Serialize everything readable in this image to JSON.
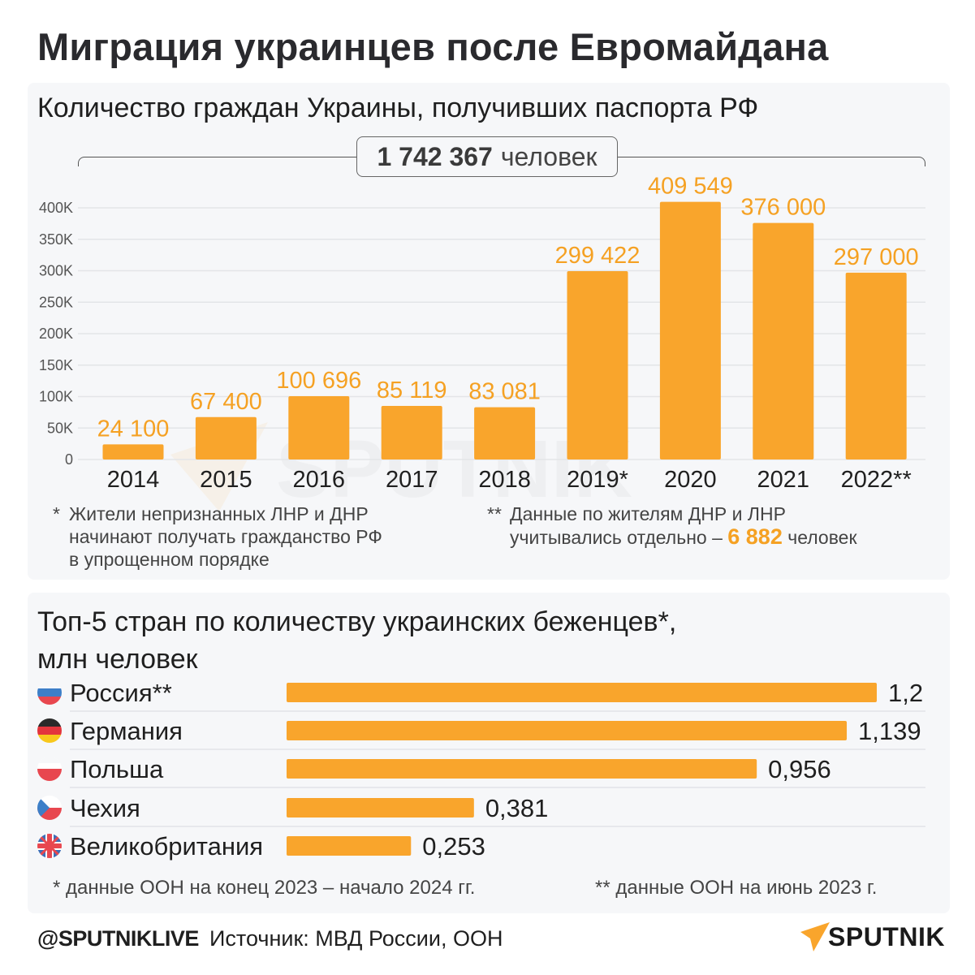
{
  "title": "Миграция украинцев после Евромайдана",
  "passports": {
    "subtitle": "Количество граждан Украины, получивших паспорта РФ",
    "total_value": "1 742 367",
    "total_unit": "человек",
    "notes": [
      {
        "marker": "*",
        "lines": [
          "Жители непризнанных ЛНР и ДНР",
          "начинают получать гражданство РФ",
          "в упрощенном порядке"
        ]
      },
      {
        "marker": "**",
        "line1": "Данные по жителям ДНР и ЛНР",
        "line2_prefix": "учитывались отдельно –",
        "line2_highlight": "6 882",
        "line2_suffix": "человек"
      }
    ]
  },
  "refugees": {
    "subtitle_line1": "Топ-5 стран по количеству украинских беженцев*,",
    "subtitle_line2": "млн человек",
    "footnote1": "* данные ООН на конец 2023 – начало 2024 гг.",
    "footnote2": "** данные ООН на июнь 2023 г."
  },
  "footer": {
    "handle": "@SPUTNIKLIVE",
    "source": "Источник: МВД России, ООН",
    "logo_text": "SPUTNIK",
    "watermark_text": "SPUTNIK"
  },
  "colors": {
    "accent": "#f9a52c",
    "accent_text": "#f5a123",
    "panel_bg": "#f6f7f9",
    "text": "#1f1f1f"
  },
  "chart_data": [
    {
      "type": "bar",
      "title": "Количество граждан Украины, получивших паспорта РФ",
      "xlabel": "",
      "ylabel": "",
      "categories": [
        "2014",
        "2015",
        "2016",
        "2017",
        "2018",
        "2019*",
        "2020",
        "2021",
        "2022**"
      ],
      "values": [
        24100,
        67400,
        100696,
        85119,
        83081,
        299422,
        409549,
        376000,
        297000
      ],
      "value_labels": [
        "24 100",
        "67 400",
        "100 696",
        "85 119",
        "83 081",
        "299 422",
        "409 549",
        "376 000",
        "297 000"
      ],
      "ylim": [
        0,
        400000
      ],
      "yticks": [
        0,
        50000,
        100000,
        150000,
        200000,
        250000,
        300000,
        350000,
        400000
      ],
      "ytick_labels": [
        "0",
        "50K",
        "100K",
        "150K",
        "200K",
        "250K",
        "300K",
        "350K",
        "400K"
      ],
      "grid": true,
      "legend": "none",
      "annotation": "1 742 367 человек"
    },
    {
      "type": "bar",
      "orientation": "horizontal",
      "title": "Топ-5 стран по количеству украинских беженцев*, млн человек",
      "categories": [
        "Россия**",
        "Германия",
        "Польша",
        "Чехия",
        "Великобритания"
      ],
      "flags": [
        "russia-flag",
        "germany-flag",
        "poland-flag",
        "czechia-flag",
        "uk-flag"
      ],
      "values": [
        1.2,
        1.139,
        0.956,
        0.381,
        0.253
      ],
      "value_labels": [
        "1,2",
        "1,139",
        "0,956",
        "0,381",
        "0,253"
      ],
      "xlim": [
        0,
        1.2
      ],
      "grid": false,
      "legend": "none"
    }
  ]
}
